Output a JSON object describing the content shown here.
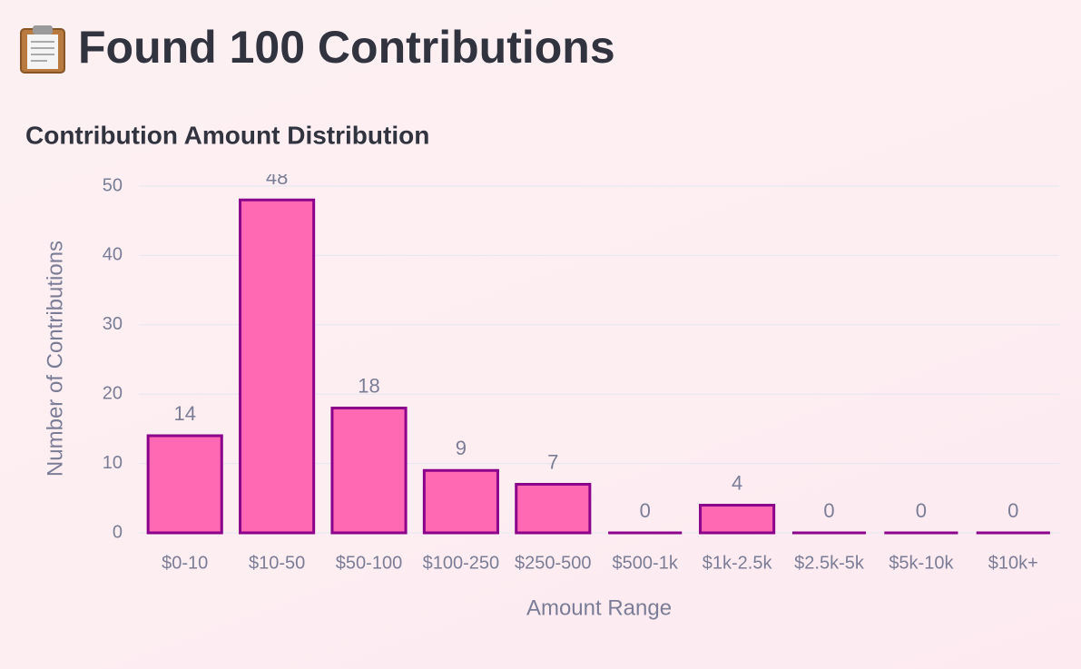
{
  "header": {
    "title": "Found 100 Contributions"
  },
  "chart_data": {
    "type": "bar",
    "title": "Contribution Amount Distribution",
    "x_label": "Amount Range",
    "y_label": "Number of Contributions",
    "categories": [
      "$0-10",
      "$10-50",
      "$50-100",
      "$100-250",
      "$250-500",
      "$500-1k",
      "$1k-2.5k",
      "$2.5k-5k",
      "$5k-10k",
      "$10k+"
    ],
    "values": [
      14,
      48,
      18,
      9,
      7,
      0,
      4,
      0,
      0,
      0
    ],
    "color": "#ff69b4",
    "edge_color": "#8b008b",
    "ylim": [
      0,
      50
    ],
    "yticks": [
      0,
      10,
      20,
      30,
      40,
      50
    ],
    "grid": true
  }
}
